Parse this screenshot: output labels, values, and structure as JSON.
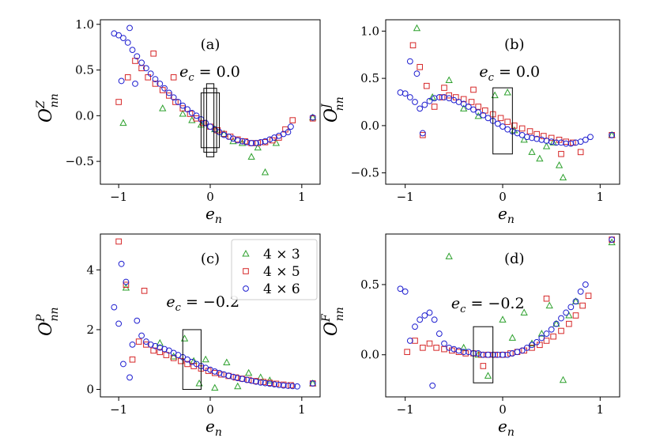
{
  "chart_data": [
    {
      "type": "scatter",
      "panel": "(a)",
      "ylabel_main": "O",
      "ylabel_sup": "Z",
      "ylabel_sub": "nn",
      "xlabel_main": "e",
      "xlabel_sub": "n",
      "annotation_lhs": "e",
      "annotation_sub": "c",
      "annotation_rhs": " = 0.0",
      "xlim": [
        -1.2,
        1.2
      ],
      "ylim": [
        -0.75,
        1.05
      ],
      "xticks": [
        -1,
        0,
        1
      ],
      "xtick_labels": [
        "−1",
        "0",
        "1"
      ],
      "yticks": [
        -0.5,
        0.0,
        0.5,
        1.0
      ],
      "ytick_labels": [
        "−0.5",
        "0.0",
        "0.5",
        "1.0"
      ],
      "boxes": [
        {
          "x0": -0.04,
          "x1": 0.04,
          "y0": -0.45,
          "y1": 0.35
        },
        {
          "x0": -0.07,
          "x1": 0.07,
          "y0": -0.4,
          "y1": 0.3
        },
        {
          "x0": -0.1,
          "x1": 0.1,
          "y0": -0.35,
          "y1": 0.25
        }
      ],
      "series": [
        {
          "name": "4 × 3",
          "marker": "triangle",
          "color": "#2ca02c",
          "x": [
            -0.95,
            -0.52,
            -0.3,
            -0.2,
            -0.1,
            0.05,
            0.15,
            0.25,
            0.35,
            0.45,
            0.52,
            0.6,
            0.72,
            1.12
          ],
          "y": [
            -0.08,
            0.08,
            0.02,
            -0.05,
            -0.1,
            -0.15,
            -0.2,
            -0.28,
            -0.3,
            -0.45,
            -0.35,
            -0.62,
            -0.3,
            -0.02
          ]
        },
        {
          "name": "4 × 5",
          "marker": "square",
          "color": "#d62728",
          "x": [
            -1.0,
            -0.9,
            -0.82,
            -0.75,
            -0.68,
            -0.6,
            -0.52,
            -0.45,
            -0.38,
            -0.3,
            -0.22,
            -0.15,
            -0.08,
            0.0,
            0.08,
            0.15,
            0.22,
            0.3,
            0.38,
            0.45,
            0.52,
            0.6,
            0.68,
            0.75,
            0.82,
            0.9,
            -0.62,
            -0.4,
            1.12
          ],
          "y": [
            0.15,
            0.42,
            0.6,
            0.52,
            0.42,
            0.35,
            0.28,
            0.22,
            0.15,
            0.08,
            0.02,
            -0.03,
            -0.08,
            -0.12,
            -0.16,
            -0.2,
            -0.23,
            -0.26,
            -0.28,
            -0.3,
            -0.3,
            -0.29,
            -0.27,
            -0.24,
            -0.15,
            -0.05,
            0.68,
            0.42,
            -0.03
          ]
        },
        {
          "name": "4 × 6",
          "marker": "circle",
          "color": "#1f1fd0",
          "x": [
            -1.05,
            -1.0,
            -0.95,
            -0.9,
            -0.85,
            -0.8,
            -0.75,
            -0.7,
            -0.65,
            -0.6,
            -0.55,
            -0.5,
            -0.45,
            -0.4,
            -0.35,
            -0.3,
            -0.25,
            -0.2,
            -0.15,
            -0.1,
            -0.05,
            0.0,
            0.05,
            0.1,
            0.15,
            0.2,
            0.25,
            0.3,
            0.35,
            0.4,
            0.45,
            0.5,
            0.55,
            0.6,
            0.65,
            0.7,
            0.75,
            0.8,
            0.85,
            0.88,
            -0.97,
            -0.88,
            -0.82,
            1.12
          ],
          "y": [
            0.9,
            0.88,
            0.85,
            0.8,
            0.72,
            0.65,
            0.58,
            0.52,
            0.46,
            0.4,
            0.35,
            0.3,
            0.25,
            0.2,
            0.15,
            0.11,
            0.07,
            0.03,
            0.0,
            -0.04,
            -0.08,
            -0.12,
            -0.15,
            -0.18,
            -0.21,
            -0.23,
            -0.25,
            -0.27,
            -0.28,
            -0.29,
            -0.3,
            -0.3,
            -0.29,
            -0.28,
            -0.26,
            -0.24,
            -0.22,
            -0.2,
            -0.18,
            -0.12,
            0.38,
            0.96,
            0.35,
            -0.02
          ]
        }
      ]
    },
    {
      "type": "scatter",
      "panel": "(b)",
      "ylabel_main": "O",
      "ylabel_sup": "J",
      "ylabel_sub": "nn",
      "xlabel_main": "e",
      "xlabel_sub": "n",
      "annotation_lhs": "e",
      "annotation_sub": "c",
      "annotation_rhs": " = 0.0",
      "xlim": [
        -1.2,
        1.2
      ],
      "ylim": [
        -0.62,
        1.12
      ],
      "xticks": [
        -1,
        0,
        1
      ],
      "xtick_labels": [
        "−1",
        "0",
        "1"
      ],
      "yticks": [
        -0.5,
        0.0,
        0.5,
        1.0
      ],
      "ytick_labels": [
        "−0.5",
        "0.0",
        "0.5",
        "1.0"
      ],
      "boxes": [
        {
          "x0": -0.1,
          "x1": 0.1,
          "y0": -0.3,
          "y1": 0.4
        }
      ],
      "series": [
        {
          "name": "4 × 3",
          "marker": "triangle",
          "color": "#2ca02c",
          "x": [
            -0.88,
            -0.72,
            -0.55,
            -0.4,
            -0.25,
            -0.08,
            0.05,
            0.12,
            0.22,
            0.3,
            0.38,
            0.45,
            0.52,
            0.58,
            0.62,
            1.12
          ],
          "y": [
            1.03,
            0.3,
            0.48,
            0.18,
            0.1,
            0.32,
            0.35,
            -0.05,
            -0.15,
            -0.28,
            -0.35,
            -0.22,
            -0.18,
            -0.42,
            -0.55,
            -0.1
          ]
        },
        {
          "name": "4 × 5",
          "marker": "square",
          "color": "#d62728",
          "x": [
            -0.92,
            -0.85,
            -0.78,
            -0.7,
            -0.62,
            -0.55,
            -0.48,
            -0.4,
            -0.32,
            -0.25,
            -0.18,
            -0.1,
            -0.02,
            0.05,
            0.12,
            0.2,
            0.28,
            0.35,
            0.42,
            0.5,
            0.58,
            0.65,
            0.72,
            0.8,
            -0.82,
            -0.6,
            -0.3,
            0.6,
            1.12
          ],
          "y": [
            0.85,
            0.62,
            0.42,
            0.2,
            0.3,
            0.32,
            0.3,
            0.28,
            0.25,
            0.2,
            0.16,
            0.12,
            0.08,
            0.04,
            0.0,
            -0.03,
            -0.06,
            -0.09,
            -0.11,
            -0.13,
            -0.15,
            -0.17,
            -0.18,
            -0.28,
            -0.1,
            0.4,
            0.38,
            -0.3,
            -0.1
          ]
        },
        {
          "name": "4 × 6",
          "marker": "circle",
          "color": "#1f1fd0",
          "x": [
            -1.05,
            -1.0,
            -0.95,
            -0.9,
            -0.85,
            -0.8,
            -0.75,
            -0.7,
            -0.65,
            -0.6,
            -0.55,
            -0.5,
            -0.45,
            -0.4,
            -0.35,
            -0.3,
            -0.25,
            -0.2,
            -0.15,
            -0.1,
            -0.05,
            0.0,
            0.05,
            0.1,
            0.15,
            0.2,
            0.25,
            0.3,
            0.35,
            0.4,
            0.45,
            0.5,
            0.55,
            0.6,
            0.65,
            0.7,
            0.75,
            0.8,
            0.85,
            0.9,
            -0.95,
            -0.88,
            -0.82,
            1.12
          ],
          "y": [
            0.35,
            0.34,
            0.3,
            0.25,
            0.18,
            0.22,
            0.26,
            0.29,
            0.3,
            0.3,
            0.29,
            0.27,
            0.25,
            0.23,
            0.2,
            0.17,
            0.14,
            0.11,
            0.08,
            0.05,
            0.02,
            -0.01,
            -0.04,
            -0.06,
            -0.08,
            -0.1,
            -0.12,
            -0.13,
            -0.14,
            -0.15,
            -0.16,
            -0.17,
            -0.18,
            -0.18,
            -0.19,
            -0.19,
            -0.18,
            -0.17,
            -0.15,
            -0.12,
            0.68,
            0.55,
            -0.08,
            -0.1
          ]
        }
      ]
    },
    {
      "type": "scatter",
      "panel": "(c)",
      "ylabel_main": "O",
      "ylabel_sup": "P",
      "ylabel_sub": "nn",
      "xlabel_main": "e",
      "xlabel_sub": "n",
      "annotation_lhs": "e",
      "annotation_sub": "c",
      "annotation_rhs": " = −0.2",
      "xlim": [
        -1.2,
        1.2
      ],
      "ylim": [
        -0.25,
        5.2
      ],
      "xticks": [
        -1,
        0,
        1
      ],
      "xtick_labels": [
        "−1",
        "0",
        "1"
      ],
      "yticks": [
        0,
        2,
        4
      ],
      "ytick_labels": [
        "0",
        "2",
        "4"
      ],
      "boxes": [
        {
          "x0": -0.3,
          "x1": -0.1,
          "y0": 0.0,
          "y1": 2.0
        }
      ],
      "legend": {
        "position": "top-right",
        "entries": [
          "4 × 3",
          "4 × 5",
          "4 × 6"
        ]
      },
      "series": [
        {
          "name": "4 × 3",
          "marker": "triangle",
          "color": "#2ca02c",
          "x": [
            -0.92,
            -0.55,
            -0.4,
            -0.28,
            -0.18,
            -0.12,
            -0.05,
            0.05,
            0.18,
            0.3,
            0.42,
            0.55,
            0.65,
            1.12
          ],
          "y": [
            3.4,
            1.55,
            1.1,
            1.7,
            0.95,
            0.2,
            1.0,
            0.05,
            0.9,
            0.1,
            0.55,
            0.4,
            0.3,
            0.2
          ]
        },
        {
          "name": "4 × 5",
          "marker": "square",
          "color": "#d62728",
          "x": [
            -1.0,
            -0.92,
            -0.85,
            -0.78,
            -0.7,
            -0.62,
            -0.55,
            -0.48,
            -0.4,
            -0.32,
            -0.25,
            -0.18,
            -0.1,
            -0.02,
            0.05,
            0.12,
            0.2,
            0.28,
            0.35,
            0.42,
            0.5,
            0.58,
            0.65,
            0.72,
            0.8,
            0.88,
            -0.72,
            1.12
          ],
          "y": [
            4.95,
            3.5,
            1.0,
            1.6,
            1.5,
            1.3,
            1.25,
            1.15,
            1.05,
            0.95,
            0.85,
            0.78,
            0.7,
            0.62,
            0.55,
            0.5,
            0.45,
            0.4,
            0.36,
            0.32,
            0.28,
            0.25,
            0.22,
            0.19,
            0.16,
            0.14,
            3.3,
            0.2
          ]
        },
        {
          "name": "4 × 6",
          "marker": "circle",
          "color": "#1f1fd0",
          "x": [
            -1.05,
            -1.0,
            -0.97,
            -0.92,
            -0.88,
            -0.85,
            -0.8,
            -0.75,
            -0.7,
            -0.65,
            -0.6,
            -0.55,
            -0.5,
            -0.45,
            -0.4,
            -0.35,
            -0.3,
            -0.25,
            -0.2,
            -0.15,
            -0.1,
            -0.05,
            0.0,
            0.05,
            0.1,
            0.15,
            0.2,
            0.25,
            0.3,
            0.35,
            0.4,
            0.45,
            0.5,
            0.55,
            0.6,
            0.65,
            0.7,
            0.75,
            0.8,
            0.85,
            0.9,
            0.95,
            -0.95,
            1.12
          ],
          "y": [
            2.75,
            2.2,
            4.2,
            3.6,
            0.4,
            1.5,
            2.3,
            1.8,
            1.6,
            1.5,
            1.45,
            1.4,
            1.35,
            1.3,
            1.22,
            1.15,
            1.08,
            1.0,
            0.92,
            0.85,
            0.78,
            0.72,
            0.66,
            0.6,
            0.55,
            0.5,
            0.46,
            0.42,
            0.38,
            0.35,
            0.32,
            0.29,
            0.26,
            0.23,
            0.21,
            0.19,
            0.17,
            0.15,
            0.13,
            0.12,
            0.11,
            0.1,
            0.85,
            0.2
          ]
        }
      ]
    },
    {
      "type": "scatter",
      "panel": "(d)",
      "ylabel_main": "O",
      "ylabel_sup": "F",
      "ylabel_sub": "nn",
      "xlabel_main": "e",
      "xlabel_sub": "n",
      "annotation_lhs": "e",
      "annotation_sub": "c",
      "annotation_rhs": " = −0.2",
      "xlim": [
        -1.2,
        1.2
      ],
      "ylim": [
        -0.3,
        0.86
      ],
      "xticks": [
        -1,
        0,
        1
      ],
      "xtick_labels": [
        "−1",
        "0",
        "1"
      ],
      "yticks": [
        0.0,
        0.5
      ],
      "ytick_labels": [
        "0.0",
        "0.5"
      ],
      "boxes": [
        {
          "x0": -0.3,
          "x1": -0.1,
          "y0": -0.2,
          "y1": 0.2
        }
      ],
      "series": [
        {
          "name": "4 × 3",
          "marker": "triangle",
          "color": "#2ca02c",
          "x": [
            -0.55,
            -0.4,
            -0.25,
            -0.15,
            0.0,
            0.1,
            0.22,
            0.3,
            0.4,
            0.48,
            0.55,
            0.62,
            0.68,
            0.75,
            1.12
          ],
          "y": [
            0.7,
            0.05,
            0.0,
            -0.15,
            0.25,
            0.12,
            0.3,
            0.08,
            0.15,
            0.35,
            0.22,
            -0.18,
            0.28,
            0.38,
            0.8
          ]
        },
        {
          "name": "4 × 5",
          "marker": "square",
          "color": "#d62728",
          "x": [
            -0.98,
            -0.9,
            -0.82,
            -0.75,
            -0.68,
            -0.6,
            -0.52,
            -0.45,
            -0.38,
            -0.3,
            -0.22,
            -0.15,
            -0.08,
            0.0,
            0.08,
            0.15,
            0.22,
            0.3,
            0.38,
            0.45,
            0.52,
            0.6,
            0.68,
            0.75,
            0.82,
            0.88,
            -0.2,
            0.45,
            1.12
          ],
          "y": [
            0.02,
            0.1,
            0.05,
            0.08,
            0.05,
            0.04,
            0.03,
            0.02,
            0.01,
            0.01,
            0.0,
            0.0,
            0.0,
            0.0,
            0.01,
            0.02,
            0.03,
            0.05,
            0.07,
            0.1,
            0.13,
            0.17,
            0.22,
            0.28,
            0.35,
            0.42,
            -0.08,
            0.4,
            0.82
          ]
        },
        {
          "name": "4 × 6",
          "marker": "circle",
          "color": "#1f1fd0",
          "x": [
            -1.05,
            -1.0,
            -0.95,
            -0.9,
            -0.85,
            -0.8,
            -0.75,
            -0.7,
            -0.65,
            -0.6,
            -0.55,
            -0.5,
            -0.45,
            -0.4,
            -0.35,
            -0.3,
            -0.25,
            -0.2,
            -0.15,
            -0.1,
            -0.05,
            0.0,
            0.05,
            0.1,
            0.15,
            0.2,
            0.25,
            0.3,
            0.35,
            0.4,
            0.45,
            0.5,
            0.55,
            0.6,
            0.65,
            0.7,
            0.75,
            0.8,
            0.85,
            -0.72,
            1.12
          ],
          "y": [
            0.47,
            0.45,
            0.1,
            0.2,
            0.25,
            0.28,
            0.3,
            0.25,
            0.15,
            0.08,
            0.05,
            0.04,
            0.03,
            0.02,
            0.02,
            0.01,
            0.01,
            0.0,
            0.0,
            0.0,
            0.0,
            0.0,
            0.0,
            0.01,
            0.02,
            0.03,
            0.05,
            0.07,
            0.09,
            0.12,
            0.15,
            0.18,
            0.22,
            0.26,
            0.3,
            0.34,
            0.38,
            0.45,
            0.5,
            -0.22,
            0.82
          ]
        }
      ]
    }
  ]
}
